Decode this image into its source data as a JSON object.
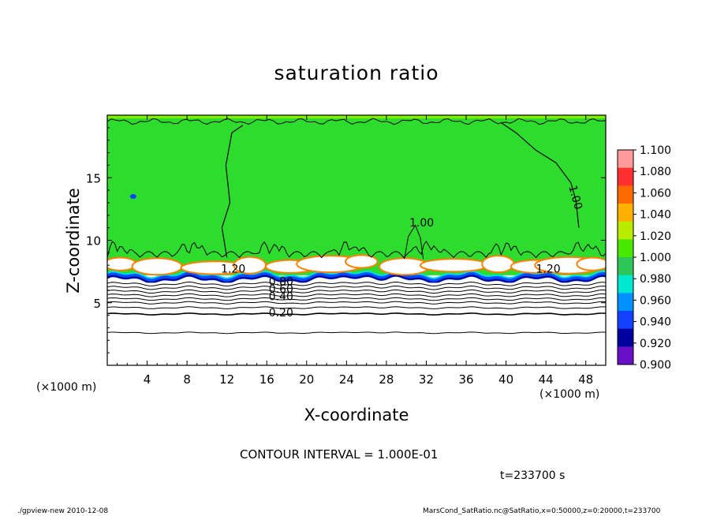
{
  "chart_data": {
    "type": "heatmap",
    "title": "saturation ratio",
    "xlabel": "X-coordinate",
    "ylabel": "Z-coordinate",
    "x_unit_labels": [
      "(×1000 m)",
      "(×1000 m)"
    ],
    "xlim": [
      0,
      50
    ],
    "ylim": [
      0,
      20
    ],
    "x_ticks": [
      4,
      8,
      12,
      16,
      20,
      24,
      28,
      32,
      36,
      40,
      44,
      48
    ],
    "y_ticks": [
      5,
      10,
      15
    ],
    "colorbar": {
      "levels": [
        "1.100",
        "1.080",
        "1.060",
        "1.040",
        "1.020",
        "1.000",
        "0.980",
        "0.960",
        "0.940",
        "0.920",
        "0.900"
      ],
      "colors": [
        "#ff9a9a",
        "#ff2f2f",
        "#ff6a00",
        "#ffb000",
        "#b8ec00",
        "#48e800",
        "#2ec85a",
        "#00e8d0",
        "#0090ff",
        "#1440ff",
        "#00009e",
        "#6a10c8"
      ]
    },
    "contour_labels": [
      "1.00",
      "1.00",
      "1.00",
      "1.20",
      "1.20",
      "0.80",
      "0.60",
      "0.40",
      "0.20"
    ],
    "background_color": "#2edc2e",
    "contour_interval_text": "CONTOUR INTERVAL = 1.000E-01"
  },
  "annotations": {
    "time": "t=233700 s",
    "footer_left": "./gpview-new   2010-12-08",
    "footer_right": "MarsCond_SatRatio.nc@SatRatio,x=0:50000,z=0:20000,t=233700"
  }
}
